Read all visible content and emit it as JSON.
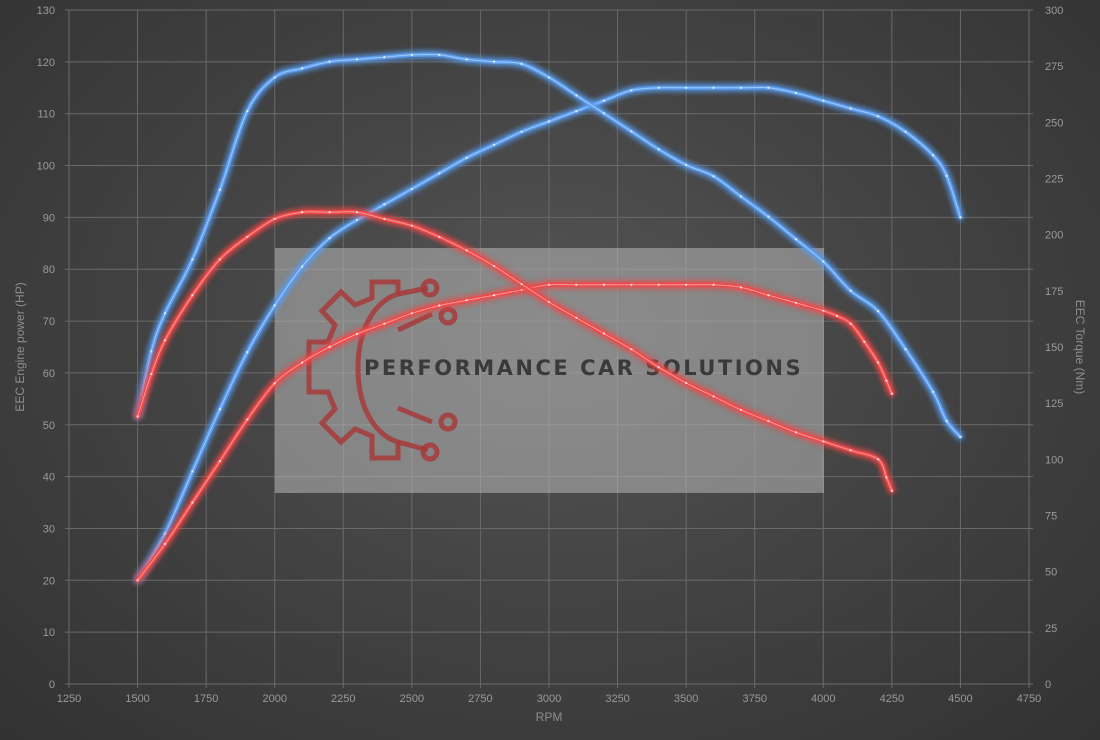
{
  "chart_data": {
    "type": "line",
    "title": "",
    "xlabel": "RPM",
    "ylabel_left": "EEC Engine power (HP)",
    "ylabel_right": "EEC Torque (Nm)",
    "xlim": [
      1250,
      4750
    ],
    "ylim_left": [
      0,
      130
    ],
    "ylim_right": [
      0,
      300
    ],
    "x_ticks": [
      "1250",
      "1500",
      "1750",
      "2000",
      "2250",
      "2500",
      "2750",
      "3000",
      "3250",
      "3500",
      "3750",
      "4000",
      "4250",
      "4500",
      "4750"
    ],
    "y_left_ticks": [
      "0",
      "10",
      "20",
      "30",
      "40",
      "50",
      "60",
      "70",
      "80",
      "90",
      "100",
      "110",
      "120",
      "130"
    ],
    "y_right_ticks": [
      "0",
      "25",
      "50",
      "75",
      "100",
      "125",
      "150",
      "175",
      "200",
      "225",
      "250",
      "275",
      "300"
    ],
    "grid": true,
    "watermark": "PERFORMANCE CAR SOLUTIONS",
    "colors": {
      "tuned": "#5a9df0",
      "stock": "#f04848",
      "grid": "#6a6a6a",
      "background": "#444444"
    },
    "series": [
      {
        "key": "tuned_power",
        "group": "tuned",
        "axis": "left",
        "x": [
          1500,
          1600,
          1700,
          1800,
          1900,
          2000,
          2100,
          2200,
          2300,
          2400,
          2500,
          2600,
          2700,
          2800,
          2900,
          3000,
          3100,
          3200,
          3300,
          3400,
          3500,
          3600,
          3700,
          3800,
          3900,
          4000,
          4100,
          4200,
          4300,
          4400,
          4450,
          4500
        ],
        "y": [
          20,
          29,
          41,
          53,
          64,
          73,
          80.5,
          86,
          89.5,
          92.5,
          95.5,
          98.5,
          101.5,
          104,
          106.5,
          108.5,
          110.5,
          112.5,
          114.5,
          115,
          115,
          115,
          115,
          115,
          114,
          112.5,
          111,
          109.5,
          106.5,
          102,
          98,
          90
        ]
      },
      {
        "key": "tuned_torque",
        "group": "tuned",
        "axis": "right",
        "x": [
          1500,
          1550,
          1600,
          1700,
          1800,
          1900,
          2000,
          2100,
          2200,
          2300,
          2400,
          2500,
          2600,
          2700,
          2800,
          2900,
          3000,
          3100,
          3200,
          3300,
          3400,
          3500,
          3600,
          3700,
          3800,
          3900,
          4000,
          4100,
          4200,
          4300,
          4400,
          4450,
          4500
        ],
        "y": [
          119,
          148,
          165,
          189,
          220,
          255,
          270,
          274,
          277,
          278,
          279,
          280,
          280,
          278,
          277,
          276,
          270,
          262,
          254,
          246,
          238,
          231,
          226,
          217,
          208,
          198,
          188,
          175,
          166,
          149,
          130,
          117,
          110
        ]
      },
      {
        "key": "stock_power",
        "group": "stock",
        "axis": "left",
        "x": [
          1500,
          1600,
          1700,
          1800,
          1900,
          2000,
          2100,
          2200,
          2300,
          2400,
          2500,
          2600,
          2700,
          2800,
          2900,
          3000,
          3100,
          3200,
          3300,
          3400,
          3500,
          3600,
          3700,
          3800,
          3900,
          4000,
          4050,
          4100,
          4150,
          4200,
          4230,
          4250
        ],
        "y": [
          20,
          27,
          35,
          43,
          51,
          58,
          62,
          65,
          67.5,
          69.5,
          71.5,
          73,
          74,
          75,
          76,
          77,
          77,
          77,
          77,
          77,
          77,
          77,
          76.5,
          75,
          73.5,
          72,
          71,
          69.5,
          66,
          62,
          58.5,
          56
        ]
      },
      {
        "key": "stock_torque",
        "group": "stock",
        "axis": "right",
        "x": [
          1500,
          1550,
          1600,
          1700,
          1800,
          1900,
          2000,
          2100,
          2200,
          2300,
          2400,
          2500,
          2600,
          2700,
          2800,
          2900,
          3000,
          3100,
          3200,
          3300,
          3400,
          3500,
          3600,
          3700,
          3800,
          3900,
          4000,
          4100,
          4200,
          4230,
          4250
        ],
        "y": [
          119,
          138,
          153,
          173,
          189,
          199,
          207,
          210,
          210,
          210,
          207,
          204,
          199,
          193,
          186,
          178,
          170,
          163,
          156,
          149,
          141,
          134,
          128,
          122,
          117,
          112,
          108,
          104,
          100,
          92,
          86
        ]
      }
    ]
  }
}
